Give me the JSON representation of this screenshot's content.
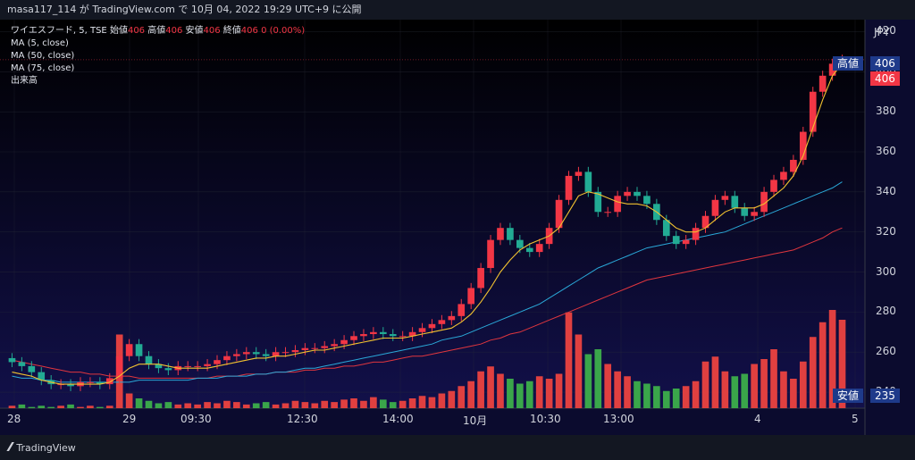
{
  "header": {
    "caption": "masa117_114 が TradingView.com で 10月 04, 2022 19:29 UTC+9 に公開"
  },
  "legend": {
    "symbol": "ワイエスフード, 5, TSE",
    "open_label": "始値",
    "open_value": "406",
    "high_label": "高値",
    "high_value": "406",
    "low_label": "安値",
    "low_value": "406",
    "close_label": "終値",
    "close_value": "406",
    "change": "0 (0.00%)",
    "ma5": "MA (5, close)",
    "ma50": "MA (50, close)",
    "ma75": "MA (75, close)",
    "volume": "出来高"
  },
  "axis": {
    "currency": "JPY",
    "y_ticks": [
      "420",
      "400",
      "380",
      "360",
      "340",
      "320",
      "300",
      "280",
      "260",
      "240"
    ],
    "x_ticks": [
      "28",
      "29",
      "09:30",
      "12:30",
      "14:00",
      "10月",
      "10:30",
      "13:00",
      "4",
      "5"
    ]
  },
  "tags": {
    "high_label": "高値",
    "high_value": "406",
    "last_value": "406",
    "low_label": "安値",
    "low_value": "235"
  },
  "branding": {
    "name": "TradingView"
  },
  "colors": {
    "up": "#f23645",
    "down": "#22ab94",
    "up_vol": "#e04040",
    "down_vol": "#3aa64a",
    "ma5": "#f2c230",
    "ma50": "#2aa8d8",
    "ma75": "#e0363e",
    "background": "#0b0b2e"
  },
  "chart_data": {
    "type": "candlestick",
    "ylim": [
      232,
      426
    ],
    "price_series": [
      255,
      253,
      250,
      246,
      244,
      244,
      243,
      245,
      245,
      244,
      247,
      258,
      264,
      258,
      254,
      252,
      251,
      253,
      253,
      253,
      254,
      256,
      258,
      259,
      260,
      259,
      258,
      260,
      260,
      261,
      262,
      262,
      263,
      264,
      266,
      268,
      269,
      270,
      269,
      268,
      268,
      270,
      272,
      274,
      276,
      278,
      284,
      292,
      302,
      316,
      322,
      316,
      312,
      310,
      314,
      322,
      336,
      348,
      350,
      340,
      330,
      330,
      338,
      340,
      338,
      334,
      326,
      318,
      314,
      316,
      322,
      328,
      336,
      338,
      332,
      328,
      330,
      340,
      346,
      350,
      356,
      370,
      390,
      398,
      404,
      406
    ],
    "ma5": [
      250,
      249,
      248,
      246,
      245,
      244,
      244,
      244,
      244,
      244,
      245,
      248,
      252,
      254,
      254,
      254,
      253,
      252,
      252,
      252,
      252,
      253,
      254,
      255,
      256,
      257,
      257,
      258,
      258,
      259,
      260,
      261,
      261,
      262,
      263,
      264,
      265,
      266,
      267,
      267,
      267,
      268,
      269,
      270,
      271,
      272,
      275,
      279,
      285,
      292,
      300,
      306,
      311,
      314,
      316,
      318,
      322,
      330,
      338,
      340,
      339,
      337,
      335,
      334,
      334,
      333,
      330,
      326,
      322,
      320,
      320,
      322,
      326,
      330,
      332,
      332,
      332,
      334,
      338,
      342,
      348,
      358,
      372,
      386,
      398,
      404
    ],
    "ma50": [
      248,
      247,
      247,
      246,
      246,
      245,
      245,
      245,
      245,
      245,
      245,
      245,
      245,
      246,
      246,
      246,
      246,
      246,
      246,
      247,
      247,
      247,
      248,
      248,
      248,
      249,
      249,
      250,
      250,
      251,
      252,
      252,
      253,
      254,
      255,
      256,
      257,
      258,
      259,
      260,
      261,
      262,
      263,
      264,
      266,
      267,
      268,
      270,
      272,
      274,
      276,
      278,
      280,
      282,
      284,
      287,
      290,
      293,
      296,
      299,
      302,
      304,
      306,
      308,
      310,
      312,
      313,
      314,
      315,
      316,
      317,
      318,
      319,
      320,
      322,
      324,
      326,
      328,
      330,
      332,
      334,
      336,
      338,
      340,
      342,
      345
    ],
    "ma75": [
      256,
      255,
      254,
      253,
      252,
      251,
      250,
      250,
      249,
      249,
      248,
      248,
      248,
      247,
      247,
      247,
      247,
      247,
      247,
      247,
      247,
      248,
      248,
      248,
      249,
      249,
      249,
      250,
      250,
      250,
      251,
      251,
      252,
      252,
      253,
      253,
      254,
      255,
      255,
      256,
      257,
      258,
      258,
      259,
      260,
      261,
      262,
      263,
      264,
      266,
      267,
      269,
      270,
      272,
      274,
      276,
      278,
      280,
      282,
      284,
      286,
      288,
      290,
      292,
      294,
      296,
      297,
      298,
      299,
      300,
      301,
      302,
      303,
      304,
      305,
      306,
      307,
      308,
      309,
      310,
      311,
      313,
      315,
      317,
      320,
      322
    ],
    "volume": [
      2,
      3,
      1,
      2,
      1,
      2,
      3,
      1,
      2,
      1,
      2,
      60,
      12,
      8,
      6,
      4,
      5,
      3,
      4,
      3,
      5,
      4,
      6,
      5,
      3,
      4,
      5,
      3,
      4,
      6,
      5,
      4,
      6,
      5,
      7,
      8,
      6,
      9,
      7,
      5,
      6,
      8,
      10,
      9,
      12,
      14,
      18,
      22,
      30,
      34,
      28,
      24,
      20,
      22,
      26,
      24,
      28,
      78,
      60,
      44,
      48,
      36,
      30,
      26,
      22,
      20,
      18,
      14,
      16,
      18,
      22,
      38,
      42,
      30,
      26,
      28,
      36,
      40,
      48,
      30,
      24,
      38,
      58,
      70,
      80,
      72
    ]
  }
}
